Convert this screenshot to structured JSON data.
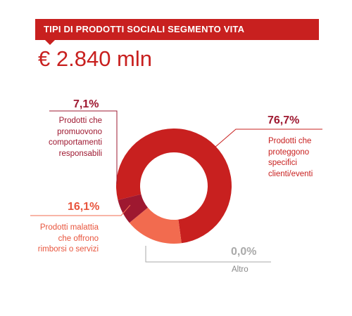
{
  "header": {
    "title": "TIPI DI PRODOTTI SOCIALI SEGMENTO VITA",
    "total": "€ 2.840 mln"
  },
  "colors": {
    "banner": "#c8201f",
    "protect": "#c8201f",
    "behavior": "#9e1830",
    "illness": "#f26b4f",
    "other": "#aaaaaa"
  },
  "chart_data": {
    "type": "pie",
    "title": "TIPI DI PRODOTTI SOCIALI SEGMENTO VITA",
    "total": "€ 2.840 mln",
    "slices": [
      {
        "key": "protect",
        "value": 76.7,
        "value_label": "76,7%",
        "label": "Prodotti che proteggono specifici clienti/eventi",
        "color": "#c8201f"
      },
      {
        "key": "illness",
        "value": 16.1,
        "value_label": "16,1%",
        "label": "Prodotti malattia che offrono rimborsi o servizi",
        "color": "#f26b4f"
      },
      {
        "key": "behavior",
        "value": 7.1,
        "value_label": "7,1%",
        "label": "Prodotti che promuovono comportamenti responsabili",
        "color": "#9e1830"
      },
      {
        "key": "other",
        "value": 0.0,
        "value_label": "0,0%",
        "label": "Altro",
        "color": "#aaaaaa"
      }
    ]
  }
}
